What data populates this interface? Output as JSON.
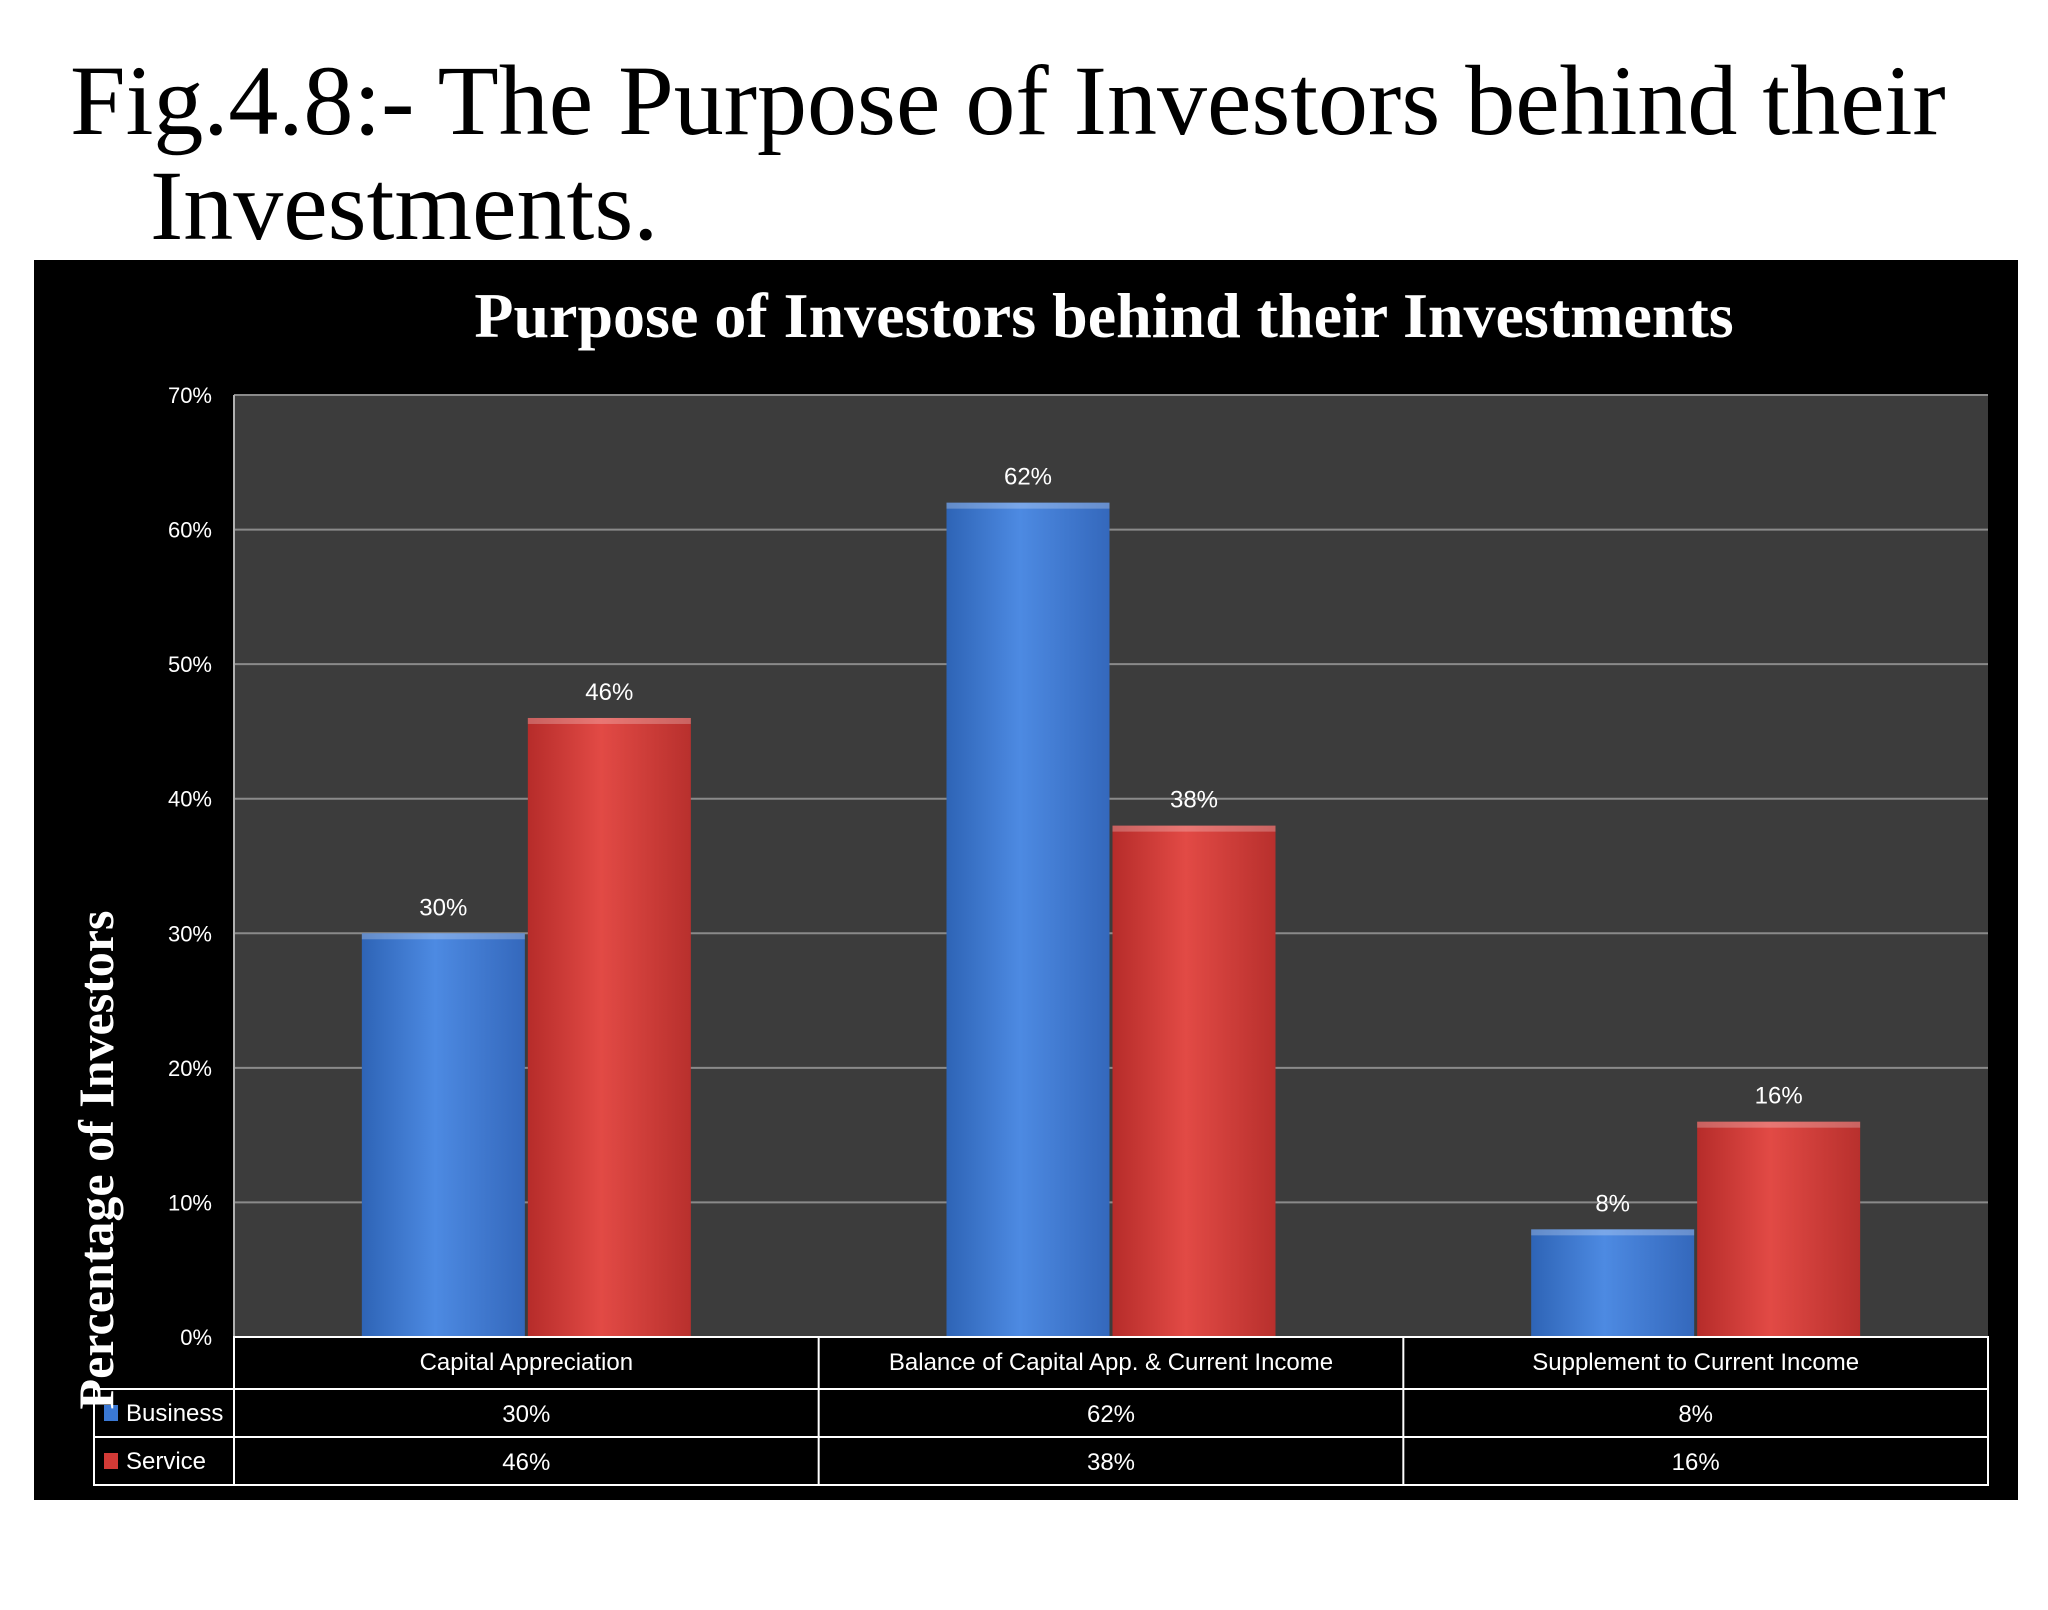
{
  "figure": {
    "title_line1": "Fig.4.8:- The Purpose of Investors behind their",
    "title_line2": "Investments."
  },
  "chart_data": {
    "type": "bar",
    "title": "Purpose of Investors behind their Investments",
    "ylabel": "Percentage of Investors",
    "xlabel": "",
    "categories": [
      "Capital Appreciation",
      "Balance of Capital App. & Current Income",
      "Supplement to Current Income"
    ],
    "series": [
      {
        "name": "Business",
        "values": [
          30,
          62,
          8
        ],
        "color": "#3a78d4"
      },
      {
        "name": "Service",
        "values": [
          46,
          38,
          16
        ],
        "color": "#d23a36"
      }
    ],
    "ylim": [
      0,
      70
    ],
    "yticks": [
      0,
      10,
      20,
      30,
      40,
      50,
      60,
      70
    ],
    "value_suffix": "%",
    "grid": true,
    "legend": "data-table",
    "plot_background": "#3c3c3c",
    "panel_background": "#000000"
  }
}
